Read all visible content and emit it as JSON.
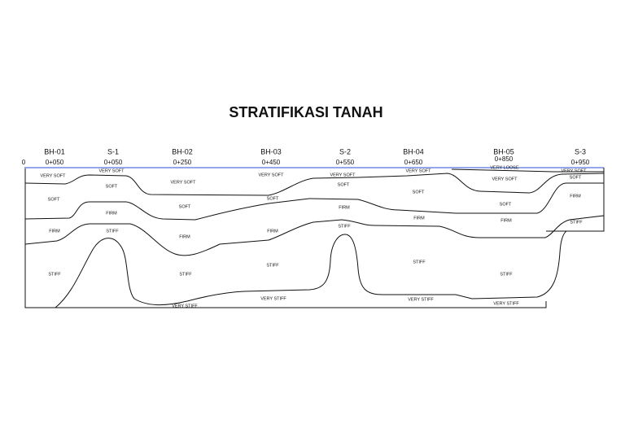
{
  "title": "STRATIFIKASI TANAH",
  "origin_label": "0",
  "boreholes": [
    {
      "name": "BH-01",
      "station": "0+050"
    },
    {
      "name": "S-1",
      "station": "0+050"
    },
    {
      "name": "BH-02",
      "station": "0+250"
    },
    {
      "name": "BH-03",
      "station": "0+450"
    },
    {
      "name": "S-2",
      "station": "0+550"
    },
    {
      "name": "BH-04",
      "station": "0+650"
    },
    {
      "name": "BH-05",
      "station": "0+850"
    },
    {
      "name": "S-3",
      "station": "0+950"
    }
  ],
  "layer_labels": [
    "VERY SOFT",
    "SOFT",
    "FIRM",
    "STIFF",
    "VERY SOFT",
    "SOFT",
    "FIRM",
    "STIFF",
    "VERY SOFT",
    "SOFT",
    "FIRM",
    "STIFF",
    "VERY STIFF",
    "VERY SOFT",
    "SOFT",
    "FIRM",
    "STIFF",
    "VERY STIFF",
    "VERY SOFT",
    "SOFT",
    "FIRM",
    "STIFF",
    "VERY SOFT",
    "SOFT",
    "FIRM",
    "STIFF",
    "VERY STIFF",
    "VERY LOOSE",
    "VERY SOFT",
    "SOFT",
    "FIRM",
    "STIFF",
    "VERY STIFF",
    "VERY SOFT",
    "SOFT",
    "FIRM",
    "STIFF"
  ]
}
